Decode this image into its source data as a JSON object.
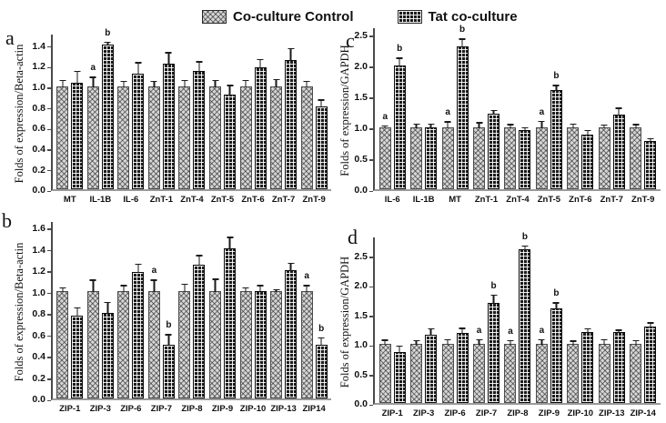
{
  "legend": {
    "items": [
      {
        "label": "Co-culture Control",
        "swatch": "crosshatch-light-swatch",
        "color": "#d6d6d6"
      },
      {
        "label": "Tat co-culture",
        "swatch": "dark-grid-swatch",
        "color": "#1c1c1c"
      }
    ]
  },
  "chart_data": [
    {
      "panel": "a",
      "type": "bar",
      "ylabel": "Folds of expression/Beta-actin",
      "ylim": [
        0,
        1.5
      ],
      "yticks": [
        "0.0",
        "0.2",
        "0.4",
        "0.6",
        "0.8",
        "1.0",
        "1.2",
        "1.4"
      ],
      "grid": false,
      "categories": [
        "MT",
        "IL-1B",
        "IL-6",
        "ZnT-1",
        "ZnT-4",
        "ZnT-5",
        "ZnT-6",
        "ZnT-7",
        "ZnT-9"
      ],
      "series": [
        {
          "name": "Co-culture Control",
          "values": [
            1.0,
            1.0,
            1.0,
            1.0,
            1.0,
            1.0,
            1.0,
            1.0,
            1.0
          ],
          "errors": [
            0.07,
            0.1,
            0.06,
            0.06,
            0.07,
            0.07,
            0.07,
            0.08,
            0.06
          ]
        },
        {
          "name": "Tat co-culture",
          "values": [
            1.03,
            1.4,
            1.12,
            1.22,
            1.15,
            0.92,
            1.18,
            1.25,
            0.8
          ],
          "errors": [
            0.13,
            0.04,
            0.12,
            0.12,
            0.1,
            0.1,
            0.09,
            0.13,
            0.08
          ]
        }
      ],
      "letters": [
        [
          "",
          ""
        ],
        [
          "a",
          "b"
        ],
        [
          "",
          ""
        ],
        [
          "",
          ""
        ],
        [
          "",
          ""
        ],
        [
          "",
          ""
        ],
        [
          "",
          ""
        ],
        [
          "",
          ""
        ],
        [
          "",
          ""
        ]
      ]
    },
    {
      "panel": "b",
      "type": "bar",
      "ylabel": "Folds of expression/Beta-actin",
      "ylim": [
        0,
        1.65
      ],
      "yticks": [
        "0.0",
        "0.2",
        "0.4",
        "0.6",
        "0.8",
        "1.0",
        "1.2",
        "1.4",
        "1.6"
      ],
      "grid": false,
      "categories": [
        "ZIP-1",
        "ZIP-3",
        "ZIP-6",
        "ZIP-7",
        "ZIP-8",
        "ZIP-9",
        "ZIP-10",
        "ZIP-13",
        "ZIP14"
      ],
      "series": [
        {
          "name": "Co-culture Control",
          "values": [
            1.0,
            1.0,
            1.0,
            1.0,
            1.0,
            1.0,
            1.0,
            1.0,
            1.0
          ],
          "errors": [
            0.05,
            0.12,
            0.07,
            0.12,
            0.08,
            0.13,
            0.05,
            0.03,
            0.07
          ]
        },
        {
          "name": "Tat co-culture",
          "values": [
            0.77,
            0.8,
            1.18,
            0.5,
            1.25,
            1.4,
            1.0,
            1.2,
            0.5
          ],
          "errors": [
            0.09,
            0.11,
            0.09,
            0.11,
            0.1,
            0.12,
            0.07,
            0.08,
            0.08
          ]
        }
      ],
      "letters": [
        [
          "",
          ""
        ],
        [
          "",
          ""
        ],
        [
          "",
          ""
        ],
        [
          "a",
          "b"
        ],
        [
          "",
          ""
        ],
        [
          "",
          ""
        ],
        [
          "",
          ""
        ],
        [
          "",
          ""
        ],
        [
          "a",
          "b"
        ]
      ]
    },
    {
      "panel": "c",
      "type": "bar",
      "ylabel": "Folds of expression/GAPDH",
      "ylim": [
        0,
        2.6
      ],
      "yticks": [
        "0.0",
        "0.5",
        "1.0",
        "1.5",
        "2.0",
        "2.5"
      ],
      "grid": false,
      "categories": [
        "IL-6",
        "IL-1B",
        "MT",
        "ZnT-1",
        "ZnT-4",
        "ZnT-5",
        "ZnT-6",
        "ZnT-7",
        "ZnT-9"
      ],
      "series": [
        {
          "name": "Co-culture Control",
          "values": [
            1.0,
            1.0,
            1.0,
            1.0,
            1.0,
            1.0,
            1.0,
            1.0,
            1.0
          ],
          "errors": [
            0.05,
            0.08,
            0.11,
            0.1,
            0.07,
            0.12,
            0.08,
            0.06,
            0.07
          ]
        },
        {
          "name": "Tat co-culture",
          "values": [
            2.0,
            1.0,
            2.3,
            1.22,
            0.95,
            1.6,
            0.88,
            1.2,
            0.78
          ],
          "errors": [
            0.14,
            0.08,
            0.15,
            0.08,
            0.07,
            0.1,
            0.09,
            0.13,
            0.06
          ]
        }
      ],
      "letters": [
        [
          "a",
          "b"
        ],
        [
          "",
          ""
        ],
        [
          "a",
          "b"
        ],
        [
          "",
          ""
        ],
        [
          "",
          ""
        ],
        [
          "a",
          "b"
        ],
        [
          "",
          ""
        ],
        [
          "",
          ""
        ],
        [
          "",
          ""
        ]
      ]
    },
    {
      "panel": "d",
      "type": "bar",
      "ylabel": "Folds of expression/GAPDH",
      "ylim": [
        0,
        2.8
      ],
      "yticks": [
        "0.0",
        "0.5",
        "1.0",
        "1.5",
        "2.0",
        "2.5"
      ],
      "grid": false,
      "categories": [
        "ZIP-1",
        "ZIP-3",
        "ZIP-6",
        "ZIP-7",
        "ZIP-8",
        "ZIP-9",
        "ZIP-10",
        "ZIP-13",
        "ZIP-14"
      ],
      "series": [
        {
          "name": "Co-culture Control",
          "values": [
            1.0,
            1.0,
            1.0,
            1.0,
            1.0,
            1.0,
            1.0,
            1.0,
            1.0
          ],
          "errors": [
            0.09,
            0.08,
            0.1,
            0.1,
            0.08,
            0.1,
            0.07,
            0.1,
            0.08
          ]
        },
        {
          "name": "Tat co-culture",
          "values": [
            0.86,
            1.15,
            1.18,
            1.7,
            2.6,
            1.6,
            1.2,
            1.2,
            1.3
          ],
          "errors": [
            0.13,
            0.13,
            0.11,
            0.15,
            0.08,
            0.12,
            0.08,
            0.06,
            0.08
          ]
        }
      ],
      "letters": [
        [
          "",
          ""
        ],
        [
          "",
          ""
        ],
        [
          "",
          ""
        ],
        [
          "a",
          "b"
        ],
        [
          "a",
          "b"
        ],
        [
          "a",
          "b"
        ],
        [
          "",
          ""
        ],
        [
          "",
          ""
        ],
        [
          "",
          ""
        ]
      ]
    }
  ]
}
